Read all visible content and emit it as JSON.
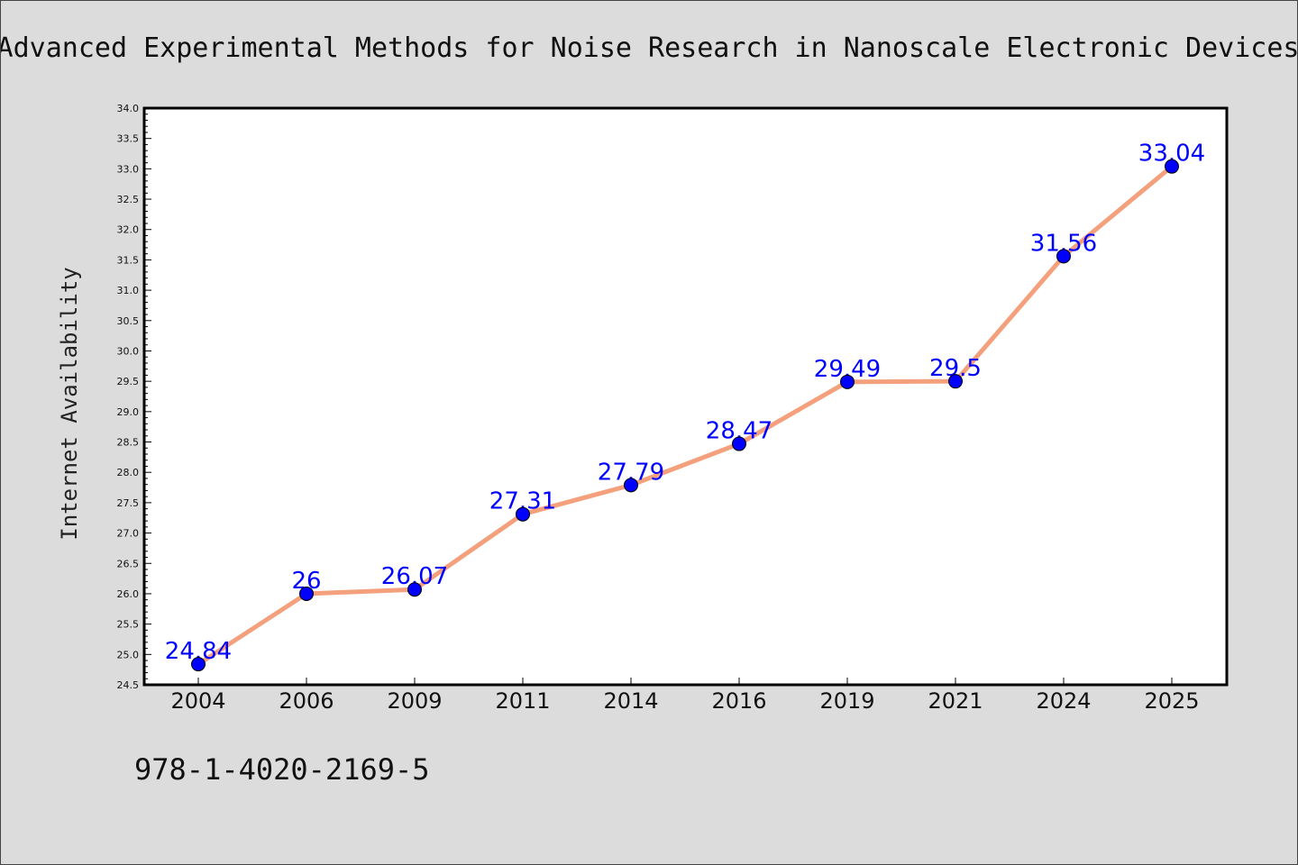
{
  "chart_data": {
    "type": "line",
    "title": "Advanced Experimental Methods for Noise Research in Nanoscale Electronic Devices",
    "xlabel": "",
    "ylabel": "Internet Availability",
    "categories": [
      "2004",
      "2006",
      "2009",
      "2011",
      "2014",
      "2016",
      "2019",
      "2021",
      "2024",
      "2025"
    ],
    "values": [
      24.84,
      26,
      26.07,
      27.31,
      27.79,
      28.47,
      29.49,
      29.5,
      31.56,
      33.04
    ],
    "data_labels": [
      "24.84",
      "26",
      "26.07",
      "27.31",
      "27.79",
      "28.47",
      "29.49",
      "29.5",
      "31.56",
      "33.04"
    ],
    "ylim": [
      24.5,
      34.0
    ],
    "yticks": [
      "24.5",
      "25.0",
      "25.5",
      "26.0",
      "26.5",
      "27.0",
      "27.5",
      "28.0",
      "28.5",
      "29.0",
      "29.5",
      "30.0",
      "30.5",
      "31.0",
      "31.5",
      "32.0",
      "32.5",
      "33.0",
      "33.5",
      "34.0"
    ],
    "grid": false,
    "legend": "none",
    "colors": {
      "line": "#f4a07c",
      "marker": "#0000ff",
      "data_label": "#0000ff",
      "background": "#dcdcdc",
      "plot_area": "#ffffff"
    }
  },
  "annotation": "978-1-4020-2169-5"
}
